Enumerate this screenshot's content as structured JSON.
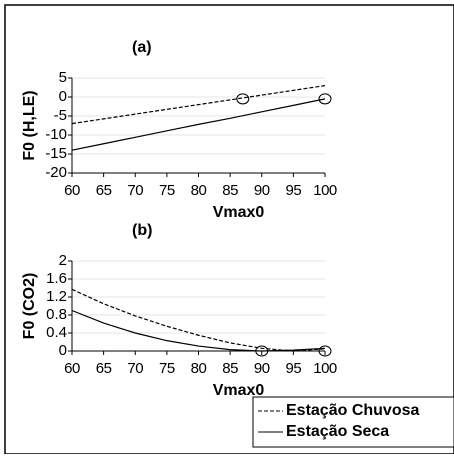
{
  "chart_data": [
    {
      "type": "line",
      "annotation": "(a)",
      "y_label": "F0 (H,LE)",
      "x_label": "Vmax0",
      "x": [
        60,
        65,
        70,
        75,
        80,
        85,
        90,
        95,
        100
      ],
      "series": [
        {
          "name": "Estação Chuvosa",
          "color": "#000000",
          "dash": "dashed",
          "values": [
            -7,
            -5.75,
            -4.5,
            -3.25,
            -2,
            -0.75,
            0.5,
            1.75,
            3
          ]
        },
        {
          "name": "Estação Seca",
          "color": "#000000",
          "dash": "solid",
          "values": [
            -14,
            -12.3,
            -10.6,
            -8.9,
            -7.2,
            -5.6,
            -3.9,
            -2.2,
            -0.5
          ]
        }
      ],
      "markers": {
        "x": [
          87,
          100
        ],
        "y": [
          -0.5,
          -0.5
        ]
      },
      "xlim": [
        60,
        100
      ],
      "xticks": [
        60,
        65,
        70,
        75,
        80,
        85,
        90,
        95,
        100
      ],
      "ylim": [
        -20,
        5
      ],
      "yticks": [
        -20,
        -15,
        -10,
        -5,
        0,
        5
      ],
      "grid": true
    },
    {
      "type": "line",
      "annotation": "(b)",
      "y_label": "F0 (CO2)",
      "x_label": "Vmax0",
      "x": [
        60,
        65,
        70,
        75,
        80,
        85,
        90,
        95,
        100
      ],
      "series": [
        {
          "color": "#000000",
          "dash": "dashed",
          "values": [
            1.37,
            1.05,
            0.78,
            0.55,
            0.35,
            0.18,
            0.06,
            0.0,
            0.05
          ]
        },
        {
          "color": "#000000",
          "dash": "solid",
          "values": [
            0.9,
            0.62,
            0.4,
            0.23,
            0.11,
            0.03,
            0.0,
            0.02,
            0.06
          ]
        }
      ],
      "markers": {
        "x": [
          90,
          100
        ],
        "y": [
          0,
          0
        ]
      },
      "xlim": [
        60,
        100
      ],
      "xticks": [
        60,
        65,
        70,
        75,
        80,
        85,
        90,
        95,
        100
      ],
      "ylim": [
        0,
        2
      ],
      "yticks": [
        0,
        0.4,
        0.8,
        1.2,
        1.6,
        2
      ],
      "grid": true
    }
  ]
}
